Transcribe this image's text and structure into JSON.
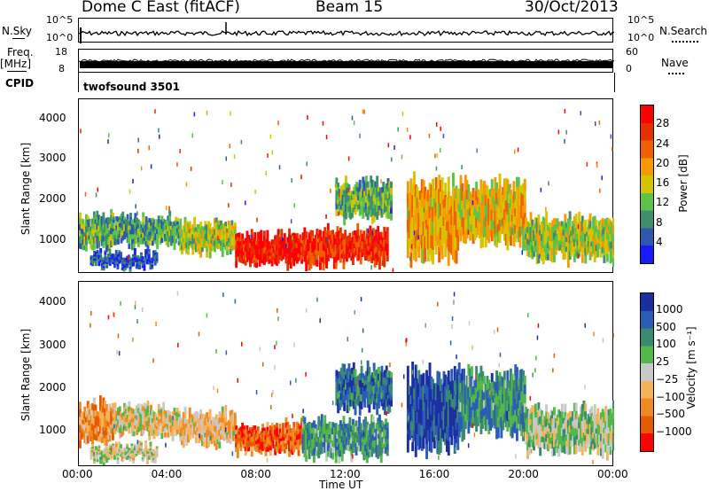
{
  "header": {
    "radar": "Dome C East (fitACF)",
    "beam": "Beam 15",
    "date": "30/Oct/2013"
  },
  "top_panels": {
    "nsky_label": "N.Sky",
    "nsky_ticks": [
      "10^5",
      "10^0"
    ],
    "nsearch_label": "N.Search",
    "nsearch_ticks": [
      "10^5",
      "10^0"
    ],
    "freq_label": "Freq.",
    "freq_unit": "[MHz]",
    "freq_ticks": [
      "18",
      "8"
    ],
    "nave_label": "Nave",
    "nave_ticks": [
      "60",
      "0"
    ],
    "cpid_label": "CPID",
    "cpid_value": "twofsound 3501"
  },
  "chart_data": [
    {
      "type": "heatmap",
      "panel": "power",
      "ylabel": "Slant Range [km]",
      "y_ticks": [
        1000,
        2000,
        3000,
        4000
      ],
      "ylim": [
        180,
        4500
      ],
      "x_ticks": [
        "00:00",
        "04:00",
        "08:00",
        "12:00",
        "16:00",
        "20:00",
        "00:00"
      ],
      "xlim_hours": [
        0,
        24
      ],
      "colorbar": {
        "label": "Power [dB]",
        "ticks": [
          "4",
          "8",
          "12",
          "16",
          "20",
          "24",
          "28"
        ],
        "colors": [
          "#1a1aff",
          "#2e58b0",
          "#3f8f6a",
          "#5cc24a",
          "#d6c400",
          "#f59a00",
          "#f06000",
          "#e63000",
          "#ff0000"
        ]
      }
    },
    {
      "type": "heatmap",
      "panel": "velocity",
      "ylabel": "Slant Range [km]",
      "xlabel": "Time UT",
      "y_ticks": [
        1000,
        2000,
        3000,
        4000
      ],
      "ylim": [
        180,
        4500
      ],
      "x_ticks": [
        "00:00",
        "04:00",
        "08:00",
        "12:00",
        "16:00",
        "20:00",
        "00:00"
      ],
      "xlim_hours": [
        0,
        24
      ],
      "colorbar": {
        "label": "Velocity [m s⁻¹]",
        "ticks": [
          "1000",
          "500",
          "100",
          "25",
          "−25",
          "−100",
          "−500",
          "−1000"
        ],
        "colors": [
          "#1c2fa0",
          "#2b5cb8",
          "#3a8a70",
          "#52b848",
          "#c8c8c8",
          "#f5b25a",
          "#f08a20",
          "#e85a00",
          "#ff0000"
        ]
      }
    }
  ]
}
